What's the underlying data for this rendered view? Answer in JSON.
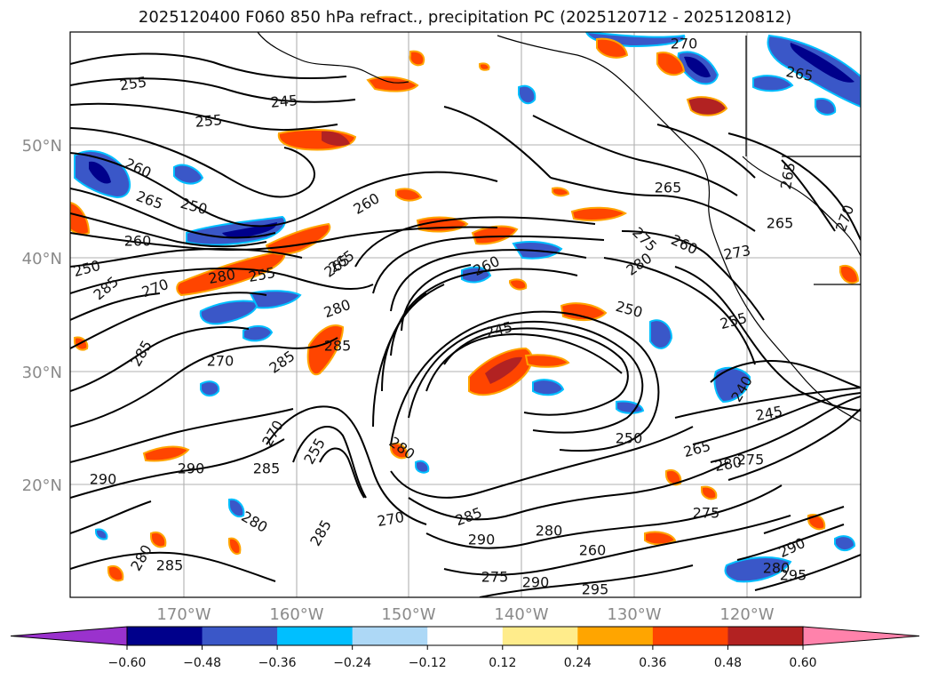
{
  "title": "2025120400 F060 850 hPa refract., precipitation PC (2025120712 - 2025120812)",
  "map": {
    "lat_labels": [
      "50°N",
      "40°N",
      "30°N",
      "20°N"
    ],
    "lon_labels": [
      "170°W",
      "160°W",
      "150°W",
      "140°W",
      "130°W",
      "120°W"
    ],
    "grid": true,
    "contour_labels": [
      "255",
      "260",
      "265",
      "255",
      "245",
      "250",
      "260",
      "260",
      "265",
      "280",
      "255",
      "285",
      "270",
      "265",
      "280",
      "260",
      "275",
      "280",
      "260",
      "273",
      "265",
      "265",
      "270",
      "285",
      "245",
      "250",
      "255",
      "250",
      "270",
      "285",
      "285",
      "240",
      "245",
      "250",
      "265",
      "280",
      "275",
      "275",
      "260",
      "285",
      "290",
      "280",
      "275",
      "270",
      "285",
      "290",
      "295",
      "265",
      "270",
      "290",
      "280",
      "295",
      "265",
      "290",
      "285",
      "255",
      "280",
      "270",
      "280",
      "285",
      "290",
      "280"
    ]
  },
  "colorbar": {
    "ticks": [
      "−0.60",
      "−0.48",
      "−0.36",
      "−0.24",
      "−0.12",
      "0.12",
      "0.24",
      "0.36",
      "0.48",
      "0.60"
    ],
    "colors": [
      "#9a32cd",
      "#00008b",
      "#3a57c8",
      "#00bfff",
      "#add8f6",
      "#ffffff",
      "#ffec8b",
      "#ffa500",
      "#ff4500",
      "#b22222",
      "#ff82ab"
    ]
  }
}
